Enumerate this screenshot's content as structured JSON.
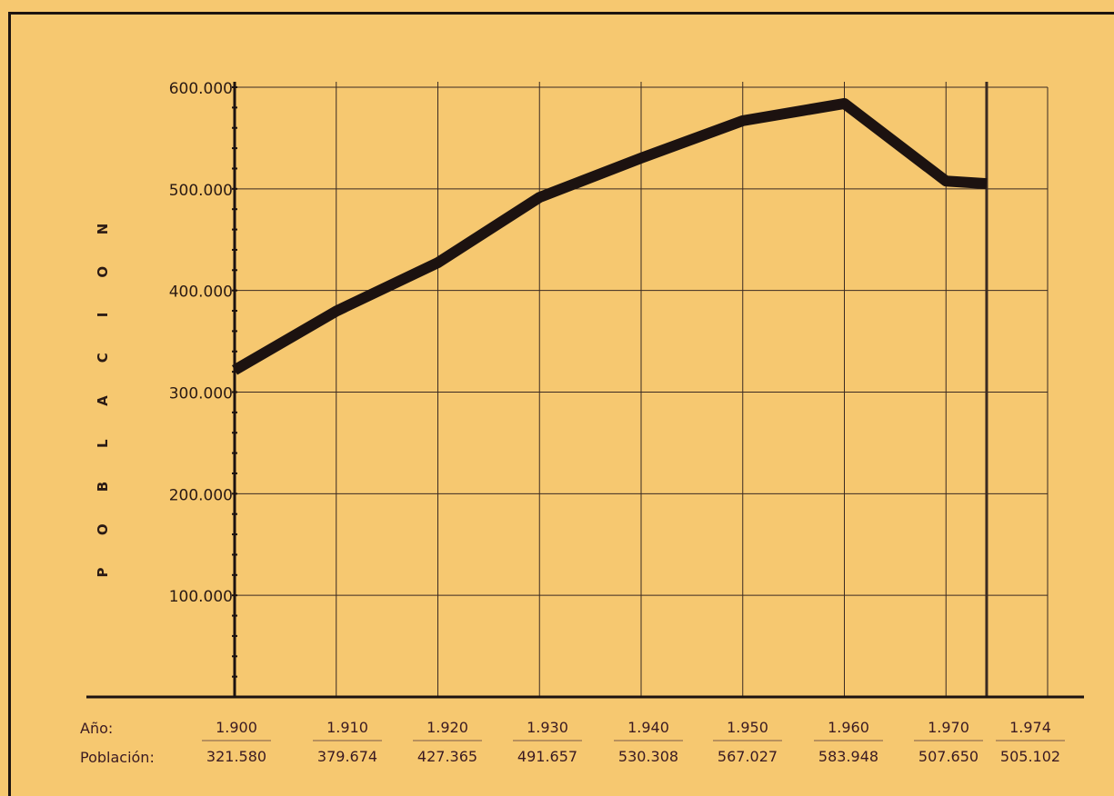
{
  "chart_data": {
    "type": "line",
    "title": "",
    "xlabel": "",
    "ylabel": "POBLACION",
    "x": [
      1900,
      1910,
      1920,
      1930,
      1940,
      1950,
      1960,
      1970,
      1974
    ],
    "x_labels": [
      "1.900",
      "1.910",
      "1.920",
      "1.930",
      "1.940",
      "1.950",
      "1.960",
      "1.970",
      "1.974"
    ],
    "series": [
      {
        "values": [
          321580,
          379674,
          427365,
          491657,
          530308,
          567027,
          583948,
          507650,
          505102
        ],
        "value_labels": [
          "321.580",
          "379.674",
          "427.365",
          "491.657",
          "530.308",
          "567.027",
          "583.948",
          "507.650",
          "505.102"
        ]
      }
    ],
    "ylim": [
      0,
      600000
    ],
    "y_ticks": [
      100000,
      200000,
      300000,
      400000,
      500000,
      600000
    ],
    "y_tick_labels": [
      "100.000",
      "200.000",
      "300.000",
      "400.000",
      "500.000",
      "600.000"
    ],
    "table_row_labels": [
      "Año:",
      "Población:"
    ],
    "grid": true,
    "legend": "none",
    "colors": {
      "background": "#f6c870",
      "line": "#1c1210",
      "grid": "#3a2a22",
      "text": "#2a1a14"
    }
  }
}
